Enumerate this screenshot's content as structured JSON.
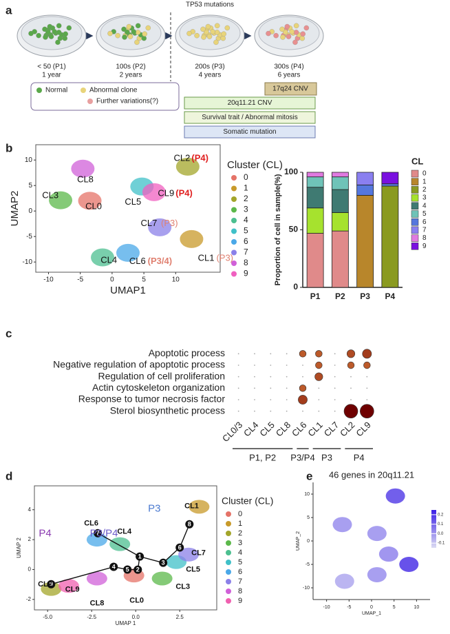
{
  "diagram": {
    "panel_label": "a",
    "title": "TP53 mutations",
    "stages": [
      {
        "label": "< 50 (P1)",
        "time": "1 year"
      },
      {
        "label": "100s (P2)",
        "time": "2 years"
      },
      {
        "label": "200s (P3)",
        "time": "4 years"
      },
      {
        "label": "300s (P4)",
        "time": "6 years"
      }
    ],
    "legend": [
      "Normal",
      "Abnormal clone",
      "Further variations(?)"
    ],
    "events": [
      "17q24 CNV",
      "20q11.21 CNV",
      "Survival trait / Abnormal mitosis",
      "Somatic mutation"
    ]
  },
  "chart_data": [
    {
      "panel": "b",
      "type": "scatter",
      "xlabel": "UMAP1",
      "ylabel": "UMAP2",
      "xlim": [
        -12,
        17
      ],
      "ylim": [
        -12,
        13
      ],
      "xticks": [
        -10,
        -5,
        0,
        5,
        10
      ],
      "yticks": [
        -10,
        -5,
        0,
        5,
        10
      ],
      "legend_title": "Cluster (CL)",
      "series": [
        {
          "name": "0",
          "color": "#e57368",
          "x": [
            -3.5
          ],
          "values": [
            2
          ]
        },
        {
          "name": "1",
          "color": "#c89a2a",
          "x": [
            12.5
          ],
          "values": [
            -5.5
          ]
        },
        {
          "name": "2",
          "color": "#a3a52a",
          "x": [
            11.9
          ],
          "values": [
            8.7
          ]
        },
        {
          "name": "3",
          "color": "#5bb84a",
          "x": [
            -8.1
          ],
          "values": [
            2.1
          ]
        },
        {
          "name": "4",
          "color": "#4cbf90",
          "x": [
            -1.5
          ],
          "values": [
            -9.1
          ]
        },
        {
          "name": "5",
          "color": "#40c0c8",
          "x": [
            4.7
          ],
          "values": [
            4.8
          ]
        },
        {
          "name": "6",
          "color": "#4aa8e8",
          "x": [
            2.5
          ],
          "values": [
            -8.2
          ]
        },
        {
          "name": "7",
          "color": "#8b80e8",
          "x": [
            7.5
          ],
          "values": [
            -3.2
          ]
        },
        {
          "name": "8",
          "color": "#d060d8",
          "x": [
            -4.6
          ],
          "values": [
            8.3
          ]
        },
        {
          "name": "9",
          "color": "#f060c0",
          "x": [
            6.6
          ],
          "values": [
            3.7
          ]
        }
      ],
      "annotations": [
        {
          "text": "CL2",
          "x": 9.7,
          "y": 10.3
        },
        {
          "text": "(P4)",
          "x": 12.5,
          "y": 10.3,
          "color": "#e02020",
          "bold": true
        },
        {
          "text": "CL8",
          "x": -5.5,
          "y": 6.1
        },
        {
          "text": "CL3",
          "x": -11,
          "y": 3
        },
        {
          "text": "CL0",
          "x": -4.2,
          "y": 0.8
        },
        {
          "text": "CL5",
          "x": 2,
          "y": 1.7
        },
        {
          "text": "CL9",
          "x": 7.2,
          "y": 3.4
        },
        {
          "text": "(P4)",
          "x": 10,
          "y": 3.4,
          "color": "#e02020",
          "bold": true
        },
        {
          "text": "CL7",
          "x": 4.5,
          "y": -2.5
        },
        {
          "text": "(P3)",
          "x": 7.7,
          "y": -2.5,
          "color": "#e08070"
        },
        {
          "text": "CL4",
          "x": -1.8,
          "y": -9.7
        },
        {
          "text": "CL6",
          "x": 2.7,
          "y": -9.9
        },
        {
          "text": "(P3/4)",
          "x": 5.6,
          "y": -9.9,
          "color": "#e08070",
          "bold": true
        },
        {
          "text": "CL1",
          "x": 13.5,
          "y": -9.3
        },
        {
          "text": "(P3)",
          "x": 16.4,
          "y": -9.3,
          "color": "#e08070"
        }
      ]
    },
    {
      "type": "bar",
      "stacked": true,
      "categories": [
        "P1",
        "P2",
        "P3",
        "P4"
      ],
      "ylabel": "Proportion of cell in sample(%)",
      "ylim": [
        0,
        100
      ],
      "yticks": [
        0,
        50,
        100
      ],
      "legend_title": "CL",
      "series": [
        {
          "name": "0",
          "color": "#e08a8a",
          "values": [
            47,
            49,
            0,
            0
          ]
        },
        {
          "name": "1",
          "color": "#b8862b",
          "values": [
            0,
            0,
            80,
            0
          ]
        },
        {
          "name": "2",
          "color": "#8a9a20",
          "values": [
            0,
            0,
            0,
            88
          ]
        },
        {
          "name": "3",
          "color": "#a6e22e",
          "values": [
            22,
            16,
            0,
            0
          ]
        },
        {
          "name": "4",
          "color": "#3f7a72",
          "values": [
            18,
            20,
            0,
            0
          ]
        },
        {
          "name": "5",
          "color": "#6fc3b8",
          "values": [
            9,
            11,
            0,
            0
          ]
        },
        {
          "name": "6",
          "color": "#5577dd",
          "values": [
            0,
            0,
            9,
            2
          ]
        },
        {
          "name": "7",
          "color": "#8a7ff0",
          "values": [
            0,
            0,
            11,
            0
          ]
        },
        {
          "name": "8",
          "color": "#e07ae0",
          "values": [
            4,
            4,
            0,
            0
          ]
        },
        {
          "name": "9",
          "color": "#7a10e0",
          "values": [
            0,
            0,
            0,
            10
          ]
        }
      ]
    },
    {
      "panel": "c",
      "type": "dot",
      "categories": [
        "CL0/3",
        "CL4",
        "CL5",
        "CL8",
        "CL6",
        "CL1",
        "CL7",
        "CL2",
        "CL9"
      ],
      "category_groups": [
        "P1, P2",
        "P1, P2",
        "P1, P2",
        "P1, P2",
        "P3/P4",
        "P3",
        "P3",
        "P4",
        "P4"
      ],
      "rows": [
        "Apoptotic process",
        "Negative regulation of apoptotic process",
        "Regulation of cell proliferation",
        "Actin cytoskeleton organization",
        "Response to tumor necrosis factor",
        "Sterol biosynthetic process"
      ],
      "values": [
        [
          0,
          0,
          0,
          0,
          2,
          2,
          0,
          2.5,
          3
        ],
        [
          0,
          0,
          0,
          0,
          0,
          2,
          0,
          2,
          2
        ],
        [
          0,
          0,
          0,
          0,
          0,
          2.5,
          0,
          0,
          0
        ],
        [
          0,
          0,
          0,
          0,
          2,
          0,
          0,
          0,
          0
        ],
        [
          0,
          0,
          0,
          0,
          3,
          0,
          0,
          0,
          0
        ],
        [
          0,
          0,
          0,
          0,
          0,
          0,
          0,
          5,
          5
        ]
      ]
    },
    {
      "panel": "d",
      "type": "scatter",
      "xlabel": "UMAP 1",
      "ylabel": "UMAP 2",
      "xlim": [
        -5.75,
        4.6
      ],
      "ylim": [
        -2.7,
        5.6
      ],
      "xticks": [
        {
          "value": -5,
          "label": "-5.0"
        },
        {
          "value": -2.5,
          "label": "-2.5"
        },
        {
          "value": 0,
          "label": "0.0"
        },
        {
          "value": 2.5,
          "label": "2.5"
        }
      ],
      "yticks": [
        -2,
        0,
        2,
        4
      ],
      "legend_title": "Cluster (CL)",
      "series": [
        {
          "name": "0",
          "color": "#e57368",
          "x": [
            -0.1
          ],
          "values": [
            -0.4
          ]
        },
        {
          "name": "1",
          "color": "#c89a2a",
          "x": [
            3.6
          ],
          "values": [
            4.2
          ]
        },
        {
          "name": "2",
          "color": "#a3a52a",
          "x": [
            -4.8
          ],
          "values": [
            -1.3
          ]
        },
        {
          "name": "3",
          "color": "#5bb84a",
          "x": [
            1.5
          ],
          "values": [
            -0.6
          ]
        },
        {
          "name": "4",
          "color": "#4cbf90",
          "x": [
            -0.9
          ],
          "values": [
            1.7
          ]
        },
        {
          "name": "5",
          "color": "#40c0c8",
          "x": [
            2.3
          ],
          "values": [
            0.5
          ]
        },
        {
          "name": "6",
          "color": "#4aa8e8",
          "x": [
            -2.2
          ],
          "values": [
            2
          ]
        },
        {
          "name": "7",
          "color": "#8b80e8",
          "x": [
            3
          ],
          "values": [
            1
          ]
        },
        {
          "name": "8",
          "color": "#d060d8",
          "x": [
            -2.2
          ],
          "values": [
            -0.6
          ]
        },
        {
          "name": "9",
          "color": "#f060b0",
          "x": [
            -3.8
          ],
          "values": [
            -1.1
          ]
        }
      ],
      "annotations": [
        {
          "text": "P3",
          "x": 0.7,
          "y": 4.05,
          "color": "#4a7ad0",
          "large": true
        },
        {
          "text": "P3/P4",
          "x": -2.6,
          "y": 2.4,
          "color": "#6a5ac8",
          "large": true
        },
        {
          "text": "P4",
          "x": -5.5,
          "y": 2.4,
          "color": "#8a3ab0",
          "large": true
        },
        {
          "text": "CL1",
          "x": 2.77,
          "y": 4.23,
          "bold": true
        },
        {
          "text": "CL6",
          "x": -2.93,
          "y": 3.08,
          "bold": true
        },
        {
          "text": "CL4",
          "x": -1.05,
          "y": 2.53,
          "bold": true
        },
        {
          "text": "CL7",
          "x": 3.16,
          "y": 1.1,
          "bold": true
        },
        {
          "text": "CL5",
          "x": 2.85,
          "y": 0,
          "bold": true
        },
        {
          "text": "CL3",
          "x": 2.27,
          "y": -1.16,
          "bold": true
        },
        {
          "text": "CL2",
          "x": -5.55,
          "y": -1,
          "bold": true
        },
        {
          "text": "CL9",
          "x": -4,
          "y": -1.35,
          "bold": true
        },
        {
          "text": "CL8",
          "x": -2.6,
          "y": -2.27,
          "bold": true
        },
        {
          "text": "CL0",
          "x": -0.35,
          "y": -2.08,
          "bold": true
        }
      ],
      "trajectory": [
        {
          "label": "9",
          "x": -4.8,
          "y": -0.98
        },
        {
          "label": "4",
          "x": -1.25,
          "y": 0.18
        },
        {
          "label": "5",
          "x": -0.47,
          "y": 0
        },
        {
          "label": "2",
          "x": 0.12,
          "y": -0.01
        },
        {
          "label": "1",
          "x": 0.23,
          "y": 0.87
        },
        {
          "label": "3",
          "x": 1.56,
          "y": 0.45
        },
        {
          "label": "6",
          "x": 2.5,
          "y": 1.47
        },
        {
          "label": "8",
          "x": 3.05,
          "y": 3.03
        },
        {
          "label": "7",
          "x": -2.15,
          "y": 2.43
        }
      ]
    },
    {
      "panel": "e",
      "type": "feature",
      "title": "46 genes in 20q11.21",
      "xlabel": "UMAP_1",
      "ylabel": "UMAP_2",
      "xlim": [
        -13,
        13
      ],
      "ylim": [
        -12.5,
        12.5
      ],
      "xticks": [
        -10,
        -5,
        0,
        5,
        10
      ],
      "yticks": [
        -10,
        -5,
        0,
        5,
        10
      ],
      "x": [
        -6.5,
        5.3,
        1.2,
        3.8,
        8.3,
        -6,
        1.2
      ],
      "values": [
        3.5,
        9.6,
        1.6,
        -2.8,
        -5,
        -8.6,
        -7.2
      ],
      "expression": [
        0,
        0.15,
        0,
        0.02,
        0.18,
        -0.05,
        0
      ],
      "clim": [
        -0.15,
        0.25
      ],
      "cticks": [
        0.2,
        0.1,
        {
          "value": 0,
          "label": "0.0"
        },
        -0.1
      ],
      "color_range": [
        "#dcdcf2",
        "#3a1ee6"
      ]
    }
  ]
}
